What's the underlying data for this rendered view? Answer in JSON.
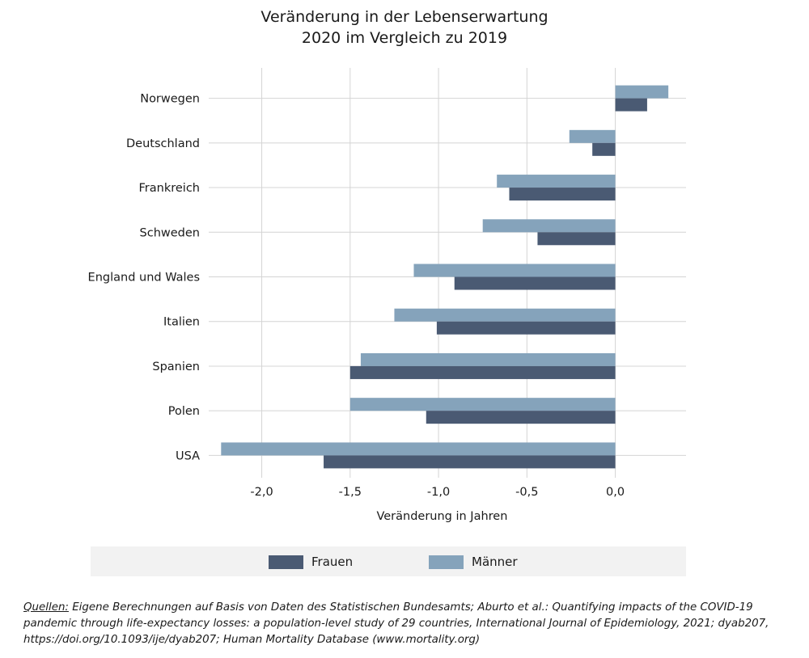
{
  "chart_data": {
    "type": "bar",
    "orientation": "horizontal",
    "title": [
      "Veränderung in der Lebenserwartung",
      "2020 im Vergleich zu 2019"
    ],
    "xlabel": "Veränderung in Jahren",
    "ylabel": "",
    "categories": [
      "Norwegen",
      "Deutschland",
      "Frankreich",
      "Schweden",
      "England und Wales",
      "Italien",
      "Spanien",
      "Polen",
      "USA"
    ],
    "series": [
      {
        "name": "Frauen",
        "color": "#4a5a73",
        "values": [
          0.18,
          -0.13,
          -0.6,
          -0.44,
          -0.91,
          -1.01,
          -1.5,
          -1.07,
          -1.65
        ]
      },
      {
        "name": "Männer",
        "color": "#85a3bb",
        "values": [
          0.3,
          -0.26,
          -0.67,
          -0.75,
          -1.14,
          -1.25,
          -1.44,
          -1.5,
          -2.23
        ]
      }
    ],
    "xlim": [
      -2.3,
      0.4
    ],
    "xticks": [
      -2.0,
      -1.5,
      -1.0,
      -0.5,
      0.0
    ],
    "xtick_labels": [
      "-2,0",
      "-1,5",
      "-1,0",
      "-0,5",
      "0,0"
    ],
    "grid": "vertical",
    "legend_position": "bottom"
  },
  "legend": {
    "frauen": "Frauen",
    "maenner": "Männer"
  },
  "source": {
    "label": "Quellen:",
    "line1": " Eigene Berechnungen auf Basis von Daten des Statistischen Bundesamts; Aburto et al.: Quantifying impacts of the COVID-19",
    "line2": "pandemic through life-expectancy losses: a population-level study of 29 countries, International Journal of Epidemiology, 2021; dyab207,",
    "line3": "https://doi.org/10.1093/ije/dyab207; Human Mortality Database (www.mortality.org)"
  }
}
